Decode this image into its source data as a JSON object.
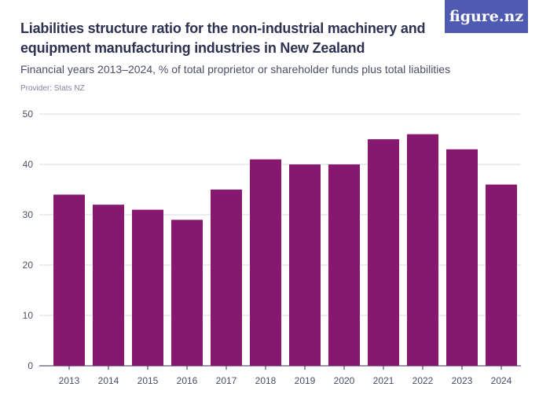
{
  "header": {
    "title": "Liabilities structure ratio for the non-industrial machinery and equipment manufacturing industries in New Zealand",
    "subtitle": "Financial years 2013–2024, % of total proprietor or shareholder funds plus total liabilities",
    "provider": "Provider: Stats NZ",
    "logo_text": "figure.nz"
  },
  "colors": {
    "bar": "#86196f",
    "grid": "#d9dbe3",
    "axis": "#2d3152",
    "logo_bg": "#4f5bb0"
  },
  "chart_data": {
    "type": "bar",
    "categories": [
      "2013",
      "2014",
      "2015",
      "2016",
      "2017",
      "2018",
      "2019",
      "2020",
      "2021",
      "2022",
      "2023",
      "2024"
    ],
    "values": [
      34,
      32,
      31,
      29,
      35,
      41,
      40,
      40,
      45,
      46,
      43,
      36
    ],
    "ylim": [
      0,
      50
    ],
    "yticks": [
      0,
      10,
      20,
      30,
      40,
      50
    ],
    "grid": true,
    "legend": "none"
  }
}
